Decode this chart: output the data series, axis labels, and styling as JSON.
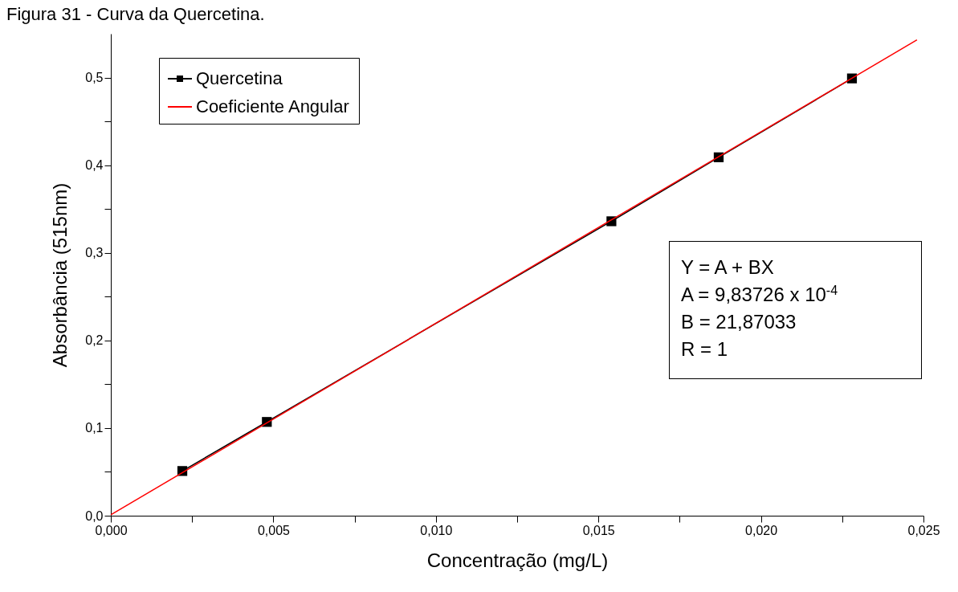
{
  "chart_data": {
    "type": "line",
    "title": "Figura 31 - Curva da Quercetina.",
    "xlabel": "Concentração (mg/L)",
    "ylabel": "Absorbância (515nm)",
    "xlim": [
      0,
      0.025
    ],
    "ylim": [
      0,
      0.55
    ],
    "xticks": [
      {
        "value": 0,
        "label": "0,000"
      },
      {
        "value": 0.0025,
        "label": null
      },
      {
        "value": 0.005,
        "label": "0,005"
      },
      {
        "value": 0.0075,
        "label": null
      },
      {
        "value": 0.01,
        "label": "0,010"
      },
      {
        "value": 0.0125,
        "label": null
      },
      {
        "value": 0.015,
        "label": "0,015"
      },
      {
        "value": 0.0175,
        "label": null
      },
      {
        "value": 0.02,
        "label": "0,020"
      },
      {
        "value": 0.0225,
        "label": null
      },
      {
        "value": 0.025,
        "label": "0,025"
      }
    ],
    "yticks": [
      {
        "value": 0,
        "label": "0,0"
      },
      {
        "value": 0.05,
        "label": null
      },
      {
        "value": 0.1,
        "label": "0,1"
      },
      {
        "value": 0.15,
        "label": null
      },
      {
        "value": 0.2,
        "label": "0,2"
      },
      {
        "value": 0.25,
        "label": null
      },
      {
        "value": 0.3,
        "label": "0,3"
      },
      {
        "value": 0.35,
        "label": null
      },
      {
        "value": 0.4,
        "label": "0,4"
      },
      {
        "value": 0.45,
        "label": null
      },
      {
        "value": 0.5,
        "label": "0,5"
      }
    ],
    "series": [
      {
        "name": "Quercetina",
        "color": "#000000",
        "marker": "square",
        "x": [
          0.0022,
          0.0048,
          0.0154,
          0.0187,
          0.0228
        ],
        "values": [
          0.051,
          0.107,
          0.336,
          0.409,
          0.499
        ]
      },
      {
        "name": "Coeficiente Angular",
        "color": "#ff0000",
        "marker": "none",
        "x": [
          0,
          0.0248
        ],
        "values": [
          0.001,
          0.543
        ]
      }
    ],
    "legend": "top left",
    "grid": false,
    "annotations": [
      "Y = A + BX",
      "A = 9,83726 x 10$^{-4}$",
      "B = 21,87033",
      "R = 1"
    ]
  }
}
